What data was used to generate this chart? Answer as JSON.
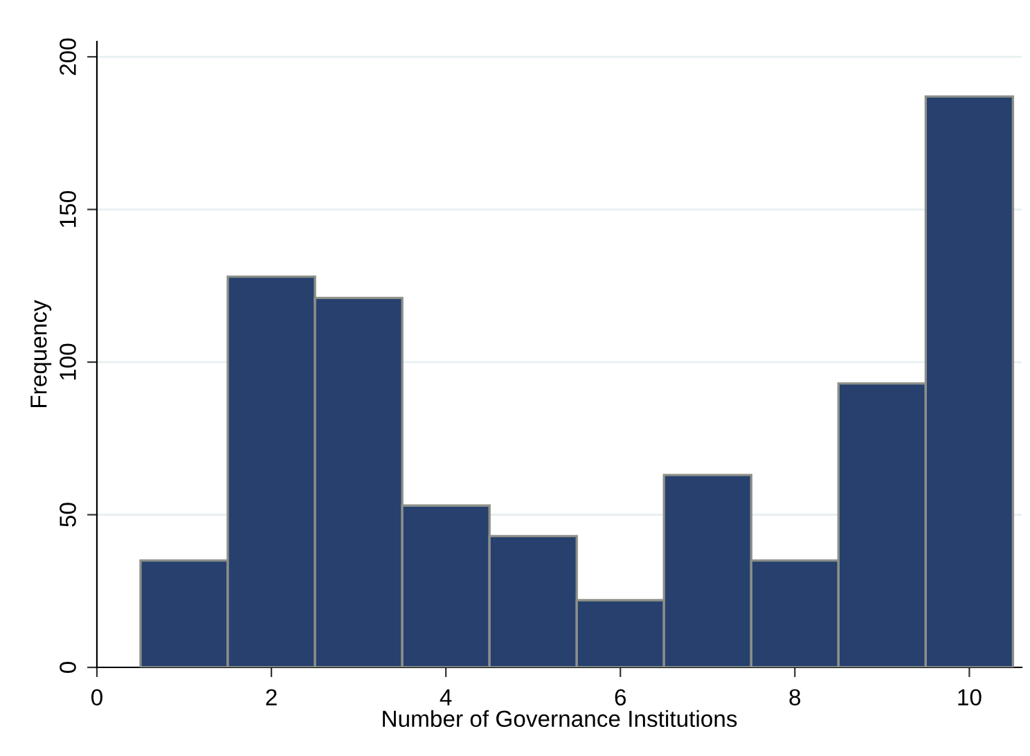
{
  "chart_data": {
    "type": "histogram",
    "xlabel": "Number of Governance Institutions",
    "ylabel": "Frequency",
    "bins": [
      0.5,
      1.5,
      2.5,
      3.5,
      4.5,
      5.5,
      6.5,
      7.5,
      8.5,
      9.5,
      10.5
    ],
    "values": [
      35,
      128,
      121,
      53,
      43,
      22,
      63,
      35,
      93,
      187
    ],
    "color": "#27406e",
    "xlim": [
      0,
      10.6
    ],
    "xticks": [
      0,
      2,
      4,
      6,
      8,
      10
    ],
    "ylim": [
      0,
      205
    ],
    "yticks": [
      0,
      50,
      100,
      150,
      200
    ],
    "grid": "y"
  }
}
